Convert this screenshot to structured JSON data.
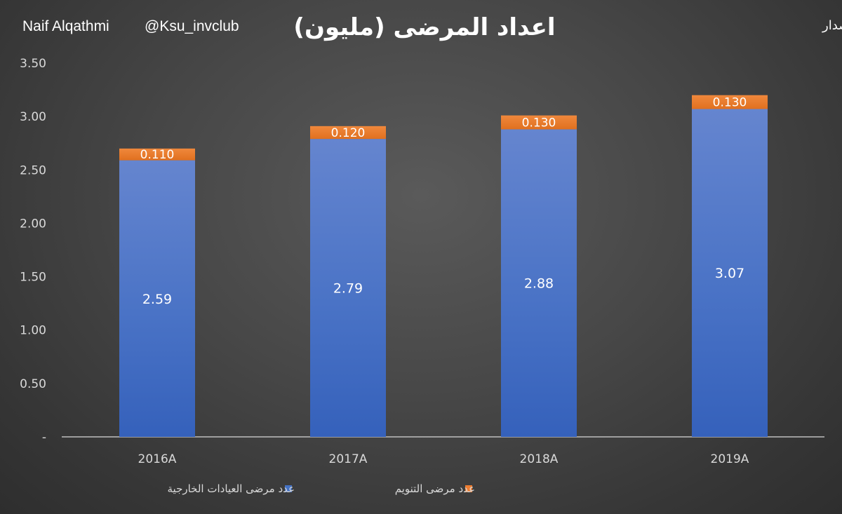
{
  "header": {
    "author": "Naif Alqathmi",
    "handle": "@Ksu_invclub",
    "source": "المصدر:نشرة الاصدار"
  },
  "chart_data": {
    "type": "bar",
    "stacked": true,
    "title": "اعداد المرضى (مليون)",
    "categories": [
      "2016A",
      "2017A",
      "2018A",
      "2019A"
    ],
    "series": [
      {
        "name": "عدد مرضى العيادات الخارجية",
        "color": "#4472c4",
        "values": [
          2.59,
          2.79,
          2.88,
          3.07
        ],
        "labels": [
          "2.59",
          "2.79",
          "2.88",
          "3.07"
        ]
      },
      {
        "name": "عدد مرضى التنويم",
        "color": "#ed7d31",
        "values": [
          0.11,
          0.12,
          0.13,
          0.13
        ],
        "labels": [
          "0.110",
          "0.120",
          "0.130",
          "0.130"
        ]
      }
    ],
    "y_ticks": [
      "-",
      "0.50",
      "1.00",
      "1.50",
      "2.00",
      "2.50",
      "3.00",
      "3.50"
    ],
    "y_tick_values": [
      0,
      0.5,
      1.0,
      1.5,
      2.0,
      2.5,
      3.0,
      3.5
    ],
    "ylim": [
      0,
      3.5
    ],
    "xlabel": "",
    "ylabel": "",
    "grid": false,
    "legend_position": "bottom"
  }
}
